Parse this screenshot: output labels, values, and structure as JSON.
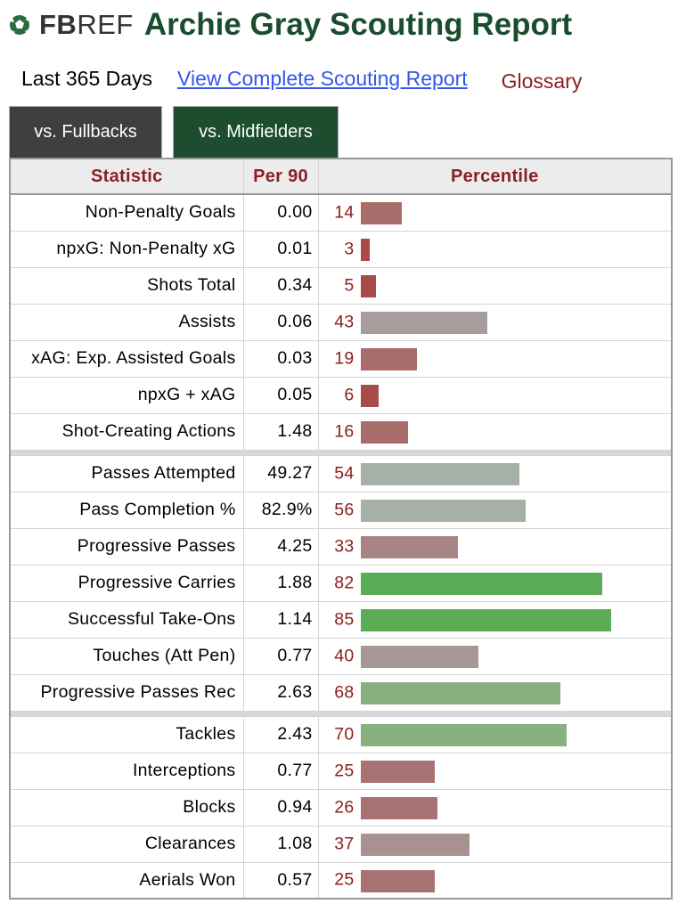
{
  "header": {
    "logo_fb": "FB",
    "logo_ref": "REF",
    "title": "Archie Gray Scouting Report"
  },
  "links": {
    "period": "Last 365 Days",
    "full_report": "View Complete Scouting Report",
    "glossary": "Glossary"
  },
  "tabs": [
    {
      "label": "vs. Fullbacks",
      "active": false
    },
    {
      "label": "vs. Midfielders",
      "active": true
    }
  ],
  "table": {
    "headers": {
      "statistic": "Statistic",
      "per90": "Per 90",
      "percentile": "Percentile"
    },
    "colors": {
      "low": "#a86d6b",
      "mid": "#a89d9d",
      "neutral": "#a7b0a7",
      "high_mid": "#88b07f",
      "high": "#5aac57"
    },
    "groups": [
      [
        {
          "stat": "Non-Penalty Goals",
          "per90": "0.00",
          "pct": 14,
          "color": "#a86d6b"
        },
        {
          "stat": "npxG: Non-Penalty xG",
          "per90": "0.01",
          "pct": 3,
          "color": "#a84c4a"
        },
        {
          "stat": "Shots Total",
          "per90": "0.34",
          "pct": 5,
          "color": "#a84c4a"
        },
        {
          "stat": "Assists",
          "per90": "0.06",
          "pct": 43,
          "color": "#a89d9d"
        },
        {
          "stat": "xAG: Exp. Assisted Goals",
          "per90": "0.03",
          "pct": 19,
          "color": "#a86d6b"
        },
        {
          "stat": "npxG + xAG",
          "per90": "0.05",
          "pct": 6,
          "color": "#a84c4a"
        },
        {
          "stat": "Shot-Creating Actions",
          "per90": "1.48",
          "pct": 16,
          "color": "#a86d6b"
        }
      ],
      [
        {
          "stat": "Passes Attempted",
          "per90": "49.27",
          "pct": 54,
          "color": "#a7b0a7"
        },
        {
          "stat": "Pass Completion %",
          "per90": "82.9%",
          "pct": 56,
          "color": "#a7b0a7"
        },
        {
          "stat": "Progressive Passes",
          "per90": "4.25",
          "pct": 33,
          "color": "#a88585"
        },
        {
          "stat": "Progressive Carries",
          "per90": "1.88",
          "pct": 82,
          "color": "#5aac57"
        },
        {
          "stat": "Successful Take-Ons",
          "per90": "1.14",
          "pct": 85,
          "color": "#5aac57"
        },
        {
          "stat": "Touches (Att Pen)",
          "per90": "0.77",
          "pct": 40,
          "color": "#a89797"
        },
        {
          "stat": "Progressive Passes Rec",
          "per90": "2.63",
          "pct": 68,
          "color": "#88b07f"
        }
      ],
      [
        {
          "stat": "Tackles",
          "per90": "2.43",
          "pct": 70,
          "color": "#88b07f"
        },
        {
          "stat": "Interceptions",
          "per90": "0.77",
          "pct": 25,
          "color": "#a87272"
        },
        {
          "stat": "Blocks",
          "per90": "0.94",
          "pct": 26,
          "color": "#a87272"
        },
        {
          "stat": "Clearances",
          "per90": "1.08",
          "pct": 37,
          "color": "#a89191"
        },
        {
          "stat": "Aerials Won",
          "per90": "0.57",
          "pct": 25,
          "color": "#a87272"
        }
      ]
    ]
  }
}
